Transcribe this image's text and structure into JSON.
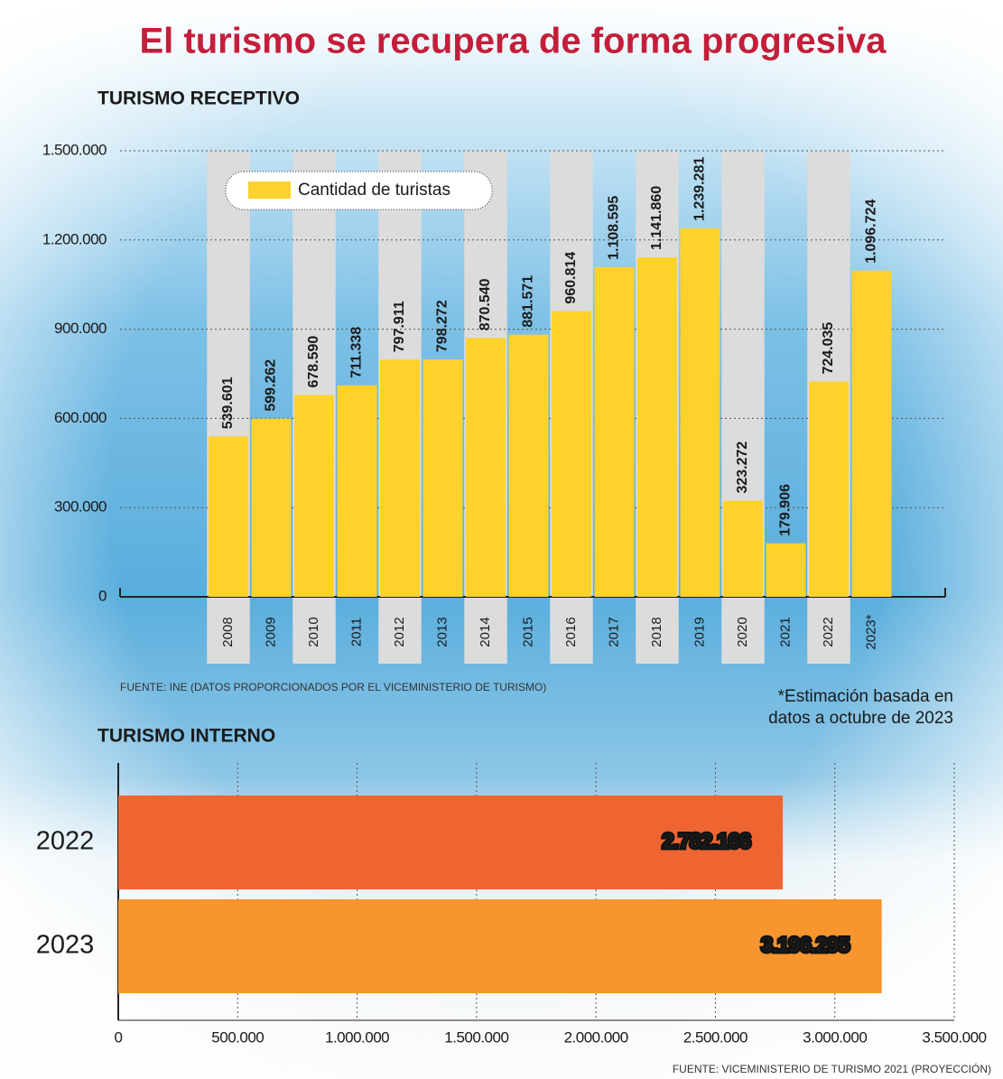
{
  "title": "El turismo se recupera de forma progresiva",
  "chart_data": [
    {
      "type": "bar",
      "title": "TURISMO RECEPTIVO",
      "categories": [
        "2008",
        "2009",
        "2010",
        "2011",
        "2012",
        "2013",
        "2014",
        "2015",
        "2016",
        "2017",
        "2018",
        "2019",
        "2020",
        "2021",
        "2022",
        "2023*"
      ],
      "series": [
        {
          "name": "Cantidad de turistas",
          "color": "#fdd22b",
          "values": [
            539601,
            599262,
            678590,
            711338,
            797911,
            798272,
            870540,
            881571,
            960814,
            1108595,
            1141860,
            1239281,
            323272,
            179906,
            724035,
            1096724
          ],
          "value_labels": [
            "539.601",
            "599.262",
            "678.590",
            "711.338",
            "797.911",
            "798.272",
            "870.540",
            "881.571",
            "960.814",
            "1.108.595",
            "1.141.860",
            "1.239.281",
            "323.272",
            "179.906",
            "724.035",
            "1.096.724"
          ]
        }
      ],
      "ylim": [
        0,
        1500000
      ],
      "yticks": [
        0,
        {
          "value": 300000,
          "label": "300.000"
        },
        {
          "value": 600000,
          "label": "600.000"
        },
        {
          "value": 900000,
          "label": "900.000"
        },
        {
          "value": 1200000,
          "label": "1.200.000"
        },
        {
          "value": 1500000,
          "label": "1.500.000"
        }
      ],
      "grid": true,
      "source": "FUENTE: INE (DATOS PROPORCIONADOS POR EL VICEMINISTERIO DE TURISMO)",
      "note": [
        "*Estimación basada en",
        "datos a octubre de 2023"
      ]
    },
    {
      "type": "hbar",
      "title": "TURISMO INTERNO",
      "categories": [
        "2022",
        "2023"
      ],
      "values": [
        2782166,
        3196295
      ],
      "value_labels": [
        "2.782.166",
        "3.196.295"
      ],
      "colors": [
        "#ef6531",
        "#f7952f"
      ],
      "xlim": [
        0,
        3500000
      ],
      "xticks": [
        0,
        {
          "value": 500000,
          "label": "500.000"
        },
        {
          "value": 1000000,
          "label": "1.000.000"
        },
        {
          "value": 1500000,
          "label": "1.500.000"
        },
        {
          "value": 2000000,
          "label": "2.000.000"
        },
        {
          "value": 2500000,
          "label": "2.500.000"
        },
        {
          "value": 3000000,
          "label": "3.000.000"
        },
        {
          "value": 3500000,
          "label": "3.500.000"
        }
      ],
      "grid": true,
      "source": "FUENTE: VICEMINISTERIO DE TURISMO 2021 (PROYECCIÓN)"
    }
  ]
}
